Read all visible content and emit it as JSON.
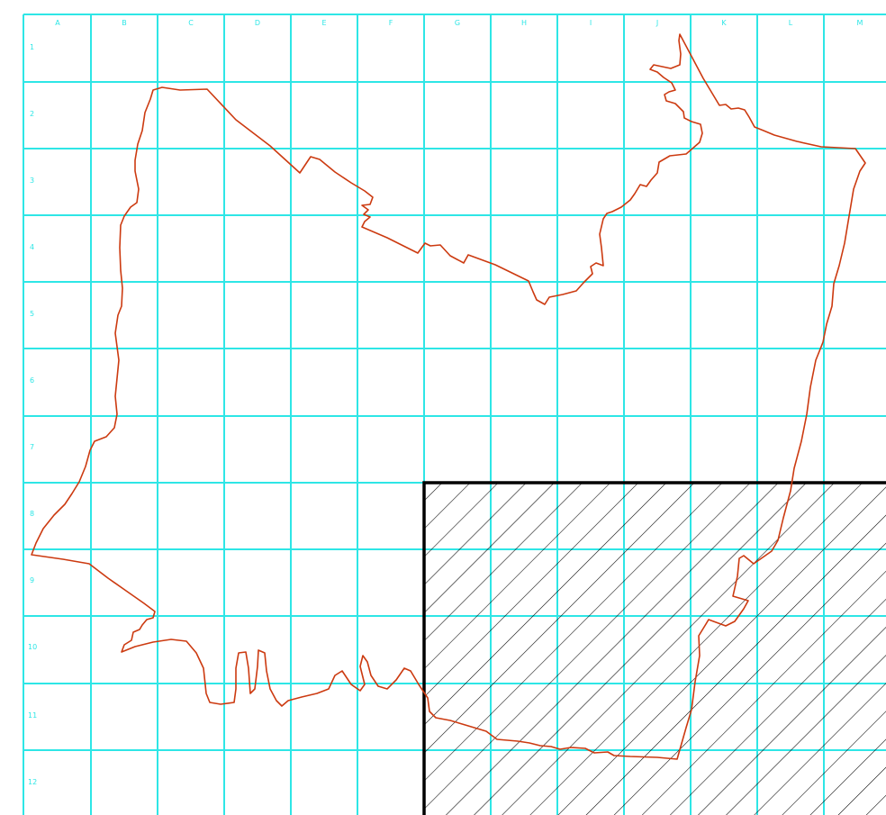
{
  "map": {
    "columns": [
      "A",
      "B",
      "C",
      "D",
      "E",
      "F",
      "G",
      "H",
      "I",
      "J",
      "K",
      "L",
      "M"
    ],
    "rows": [
      "1",
      "2",
      "3",
      "4",
      "5",
      "6",
      "7",
      "8",
      "9",
      "10",
      "11",
      "12"
    ]
  },
  "colors": {
    "background": "#ffffff",
    "grid": "#2ee6e6",
    "boundary": "#cc3a10",
    "hatch_region": "#000000"
  }
}
